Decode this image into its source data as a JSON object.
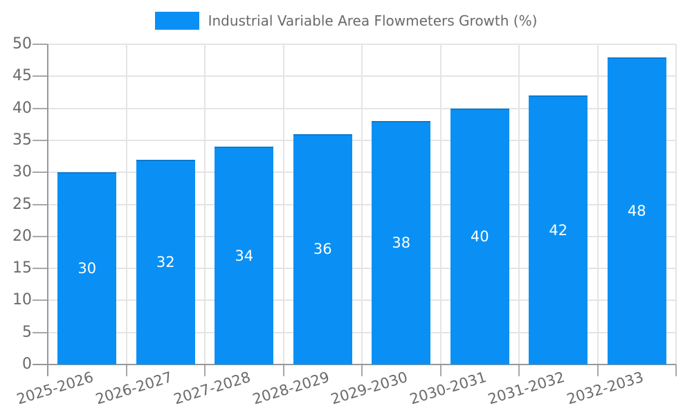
{
  "legend": {
    "label": "Industrial Variable Area Flowmeters Growth (%)"
  },
  "colors": {
    "bar": "#0a90f5",
    "bar_border": "#0a7ad0",
    "bar_label": "#ffffff",
    "grid": "#e4e4e4",
    "tick_stub": "#a8a8a8",
    "axis": "#979797",
    "tick_text": "#6a6a6a",
    "background": "#ffffff"
  },
  "chart_data": {
    "type": "bar",
    "title": "Industrial Variable Area Flowmeters Growth (%)",
    "categories": [
      "2025-2026",
      "2026-2027",
      "2027-2028",
      "2028-2029",
      "2029-2030",
      "2030-2031",
      "2031-2032",
      "2032-2033"
    ],
    "values": [
      30,
      32,
      34,
      36,
      38,
      40,
      42,
      48
    ],
    "bar_value_labels": [
      "30",
      "32",
      "34",
      "36",
      "38",
      "40",
      "42",
      "48"
    ],
    "xlabel": "",
    "ylabel": "",
    "ylim": [
      0,
      50
    ],
    "yticks": [
      0,
      5,
      10,
      15,
      20,
      25,
      30,
      35,
      40,
      45,
      50
    ],
    "grid": true,
    "legend_position": "top",
    "x_tick_rotation_deg": -17
  }
}
